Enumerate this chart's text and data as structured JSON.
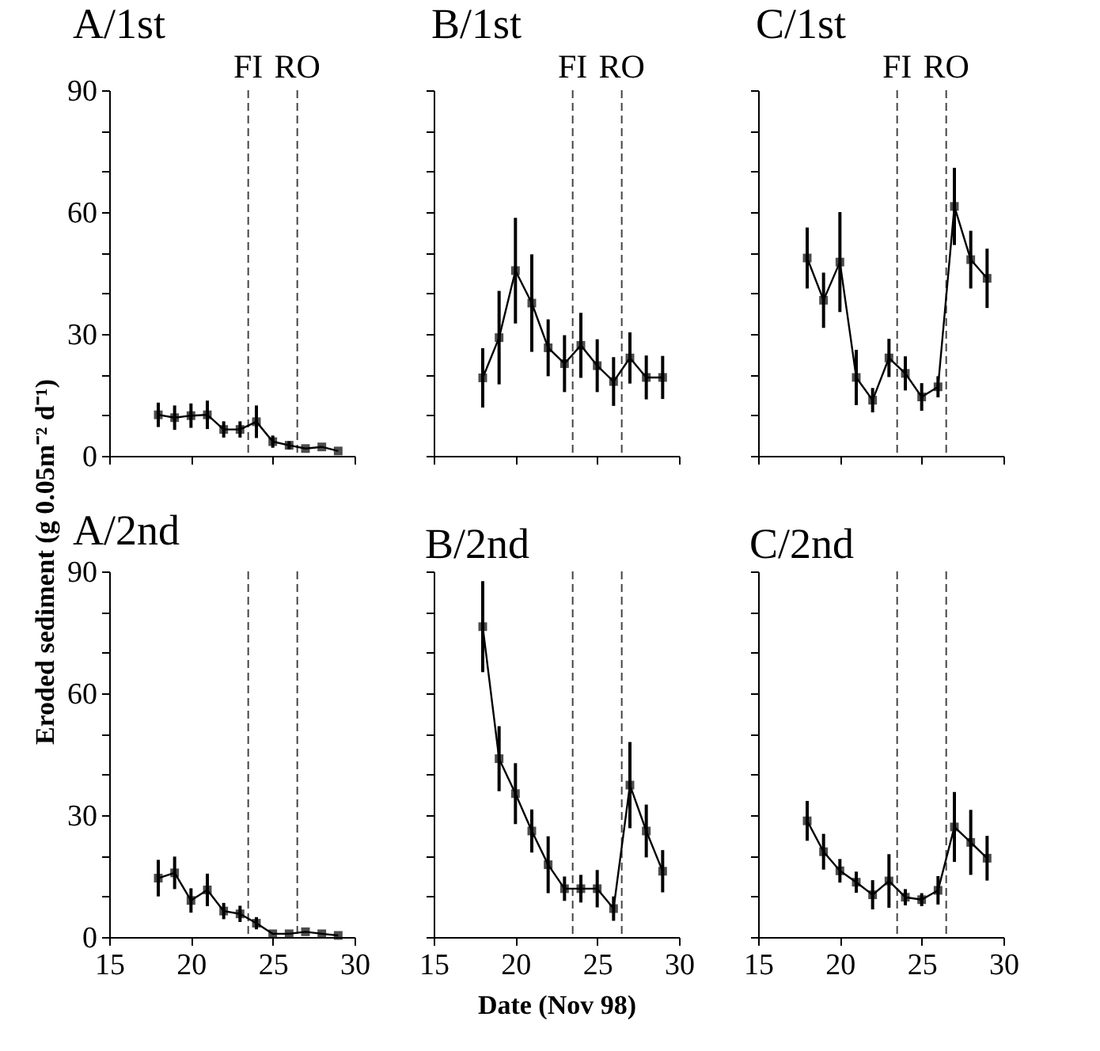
{
  "chart_data": [
    {
      "type": "line",
      "title": "A/1st",
      "ylabel": "Eroded sediment (g 0.05m⁻² d⁻¹)",
      "x": [
        18,
        19,
        20,
        21,
        22,
        23,
        24,
        25,
        26,
        27,
        28,
        29
      ],
      "xlim": [
        15,
        30
      ],
      "xticks": [
        15,
        20,
        25,
        30
      ],
      "ylim": [
        0,
        90
      ],
      "yticks": [
        0,
        {
          "value": 10,
          "label": null
        },
        {
          "value": 20,
          "label": null
        },
        30,
        {
          "value": 40,
          "label": null
        },
        {
          "value": 50,
          "label": null
        },
        60,
        {
          "value": 70,
          "label": null
        },
        {
          "value": 80,
          "label": null
        },
        90
      ],
      "tick_labels": "y",
      "marker": "square",
      "line_style": "solid",
      "series": [
        {
          "color": "#000000",
          "values": [
            10.1,
            9.4,
            9.9,
            10.1,
            6.5,
            6.5,
            8.4,
            3.5,
            2.6,
            1.8,
            2.2,
            1.2
          ],
          "errors": [
            3,
            3,
            3,
            3.5,
            2,
            2,
            4,
            1.5,
            1,
            null,
            null,
            null
          ]
        }
      ],
      "ref_lines": [
        {
          "axis": "x",
          "value": 23.5,
          "label": "FI",
          "color": "#444444",
          "line_style": "dashed"
        },
        {
          "axis": "x",
          "value": 26.5,
          "label": "RO",
          "color": "#444444",
          "line_style": "dashed"
        }
      ]
    },
    {
      "type": "line",
      "title": "B/1st",
      "x": [
        18,
        19,
        20,
        21,
        22,
        23,
        24,
        25,
        26,
        27,
        28,
        29
      ],
      "xlim": [
        15,
        30
      ],
      "xticks": [
        15,
        20,
        25,
        30
      ],
      "ylim": [
        0,
        90
      ],
      "yticks": [
        0,
        {
          "value": 10,
          "label": null
        },
        {
          "value": 20,
          "label": null
        },
        30,
        {
          "value": 40,
          "label": null
        },
        {
          "value": 50,
          "label": null
        },
        60,
        {
          "value": 70,
          "label": null
        },
        {
          "value": 80,
          "label": null
        },
        90
      ],
      "tick_labels": false,
      "marker": "square",
      "line_style": "solid",
      "series": [
        {
          "color": "#000000",
          "values": [
            19.2,
            29.1,
            45.6,
            37.6,
            26.6,
            22.7,
            27.2,
            22.2,
            18.3,
            24.1,
            19.3,
            19.3
          ],
          "errors": [
            7.3,
            11.5,
            13,
            12,
            7,
            7,
            8,
            6.5,
            6,
            6.3,
            5.4,
            5.3
          ]
        }
      ],
      "ref_lines": [
        {
          "axis": "x",
          "value": 23.5,
          "label": "FI",
          "color": "#444444",
          "line_style": "dashed"
        },
        {
          "axis": "x",
          "value": 26.5,
          "label": "RO",
          "color": "#444444",
          "line_style": "dashed"
        }
      ]
    },
    {
      "type": "line",
      "title": "C/1st",
      "x": [
        18,
        19,
        20,
        21,
        22,
        23,
        24,
        25,
        26,
        27,
        28,
        29
      ],
      "xlim": [
        15,
        30
      ],
      "xticks": [
        15,
        20,
        25,
        30
      ],
      "ylim": [
        0,
        90
      ],
      "yticks": [
        0,
        {
          "value": 10,
          "label": null
        },
        {
          "value": 20,
          "label": null
        },
        30,
        {
          "value": 40,
          "label": null
        },
        {
          "value": 50,
          "label": null
        },
        60,
        {
          "value": 70,
          "label": null
        },
        {
          "value": 80,
          "label": null
        },
        90
      ],
      "tick_labels": false,
      "marker": "square",
      "line_style": "solid",
      "series": [
        {
          "color": "#000000",
          "values": [
            48.7,
            38.3,
            47.7,
            19.3,
            13.7,
            24.1,
            20.3,
            14.5,
            17,
            61.4,
            48.3,
            43.7
          ],
          "errors": [
            7.5,
            6.8,
            12.3,
            6.8,
            3,
            4.7,
            4.2,
            3.4,
            2.6,
            9.5,
            7.1,
            7.3
          ]
        }
      ],
      "ref_lines": [
        {
          "axis": "x",
          "value": 23.5,
          "label": "FI",
          "color": "#444444",
          "line_style": "dashed"
        },
        {
          "axis": "x",
          "value": 26.5,
          "label": "RO",
          "color": "#444444",
          "line_style": "dashed"
        }
      ]
    },
    {
      "type": "line",
      "title": "A/2nd",
      "x": [
        18,
        19,
        20,
        21,
        22,
        23,
        24,
        25,
        26,
        27,
        28,
        29
      ],
      "xlim": [
        15,
        30
      ],
      "xticks": [
        15,
        20,
        25,
        30
      ],
      "ylim": [
        0,
        90
      ],
      "yticks": [
        0,
        {
          "value": 10,
          "label": null
        },
        {
          "value": 20,
          "label": null
        },
        30,
        {
          "value": 40,
          "label": null
        },
        {
          "value": 50,
          "label": null
        },
        60,
        {
          "value": 70,
          "label": null
        },
        {
          "value": 80,
          "label": null
        },
        90
      ],
      "marker": "square",
      "line_style": "solid",
      "series": [
        {
          "color": "#000000",
          "values": [
            14.5,
            15.8,
            9,
            11.6,
            6.4,
            5.7,
            3.4,
            0.8,
            0.8,
            1.3,
            0.8,
            0.4
          ],
          "errors": [
            4.5,
            4,
            3,
            4,
            2,
            2,
            1.5,
            null,
            null,
            null,
            null,
            null
          ]
        }
      ],
      "ref_lines": [
        {
          "axis": "x",
          "value": 23.5,
          "color": "#444444",
          "line_style": "dashed"
        },
        {
          "axis": "x",
          "value": 26.5,
          "color": "#444444",
          "line_style": "dashed"
        }
      ]
    },
    {
      "type": "line",
      "title": "B/2nd",
      "xlabel": "Date (Nov 98)",
      "x": [
        18,
        19,
        20,
        21,
        22,
        23,
        24,
        25,
        26,
        27,
        28,
        29
      ],
      "xlim": [
        15,
        30
      ],
      "xticks": [
        15,
        20,
        25,
        30
      ],
      "ylim": [
        0,
        90
      ],
      "yticks": [
        0,
        {
          "value": 10,
          "label": null
        },
        {
          "value": 20,
          "label": null
        },
        30,
        {
          "value": 40,
          "label": null
        },
        {
          "value": 50,
          "label": null
        },
        60,
        {
          "value": 70,
          "label": null
        },
        {
          "value": 80,
          "label": null
        },
        90
      ],
      "tick_labels": "x",
      "marker": "square",
      "line_style": "solid",
      "series": [
        {
          "color": "#000000",
          "values": [
            76.4,
            43.9,
            35.3,
            26.1,
            17.8,
            11.9,
            11.9,
            11.9,
            7,
            37.4,
            26.1,
            16.2
          ],
          "errors": [
            11.2,
            8,
            7.5,
            5.3,
            7,
            3,
            3.4,
            4.6,
            3,
            10.6,
            6.5,
            5.2
          ]
        }
      ],
      "ref_lines": [
        {
          "axis": "x",
          "value": 23.5,
          "color": "#444444",
          "line_style": "dashed"
        },
        {
          "axis": "x",
          "value": 26.5,
          "color": "#444444",
          "line_style": "dashed"
        }
      ]
    },
    {
      "type": "line",
      "title": "C/2nd",
      "x": [
        18,
        19,
        20,
        21,
        22,
        23,
        24,
        25,
        26,
        27,
        28,
        29
      ],
      "xlim": [
        15,
        30
      ],
      "xticks": [
        15,
        20,
        25,
        30
      ],
      "ylim": [
        0,
        90
      ],
      "yticks": [
        0,
        {
          "value": 10,
          "label": null
        },
        {
          "value": 20,
          "label": null
        },
        30,
        {
          "value": 40,
          "label": null
        },
        {
          "value": 50,
          "label": null
        },
        60,
        {
          "value": 70,
          "label": null
        },
        {
          "value": 80,
          "label": null
        },
        90
      ],
      "tick_labels": "x",
      "marker": "square",
      "line_style": "solid",
      "series": [
        {
          "color": "#000000",
          "values": [
            28.6,
            21,
            16.3,
            13.5,
            10.4,
            13.8,
            9.8,
            9.2,
            11.5,
            27.1,
            23.3,
            19.4
          ],
          "errors": [
            4.9,
            4.4,
            2.9,
            2.6,
            3.6,
            6.6,
            2,
            1.6,
            3.5,
            8.6,
            8,
            5.5
          ]
        }
      ],
      "ref_lines": [
        {
          "axis": "x",
          "value": 23.5,
          "color": "#444444",
          "line_style": "dashed"
        },
        {
          "axis": "x",
          "value": 26.5,
          "color": "#444444",
          "line_style": "dashed"
        }
      ]
    }
  ]
}
